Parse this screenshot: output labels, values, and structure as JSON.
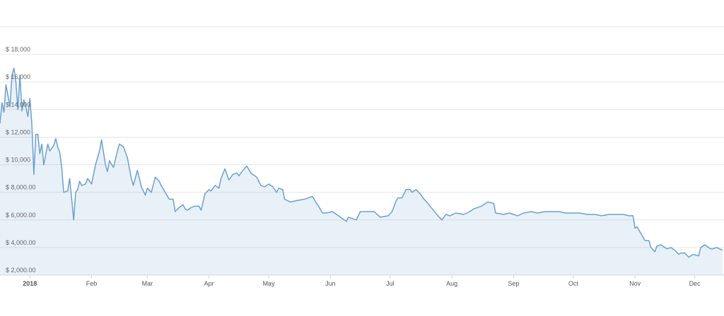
{
  "chart_data": {
    "type": "area",
    "x": [
      -15,
      -14,
      -13,
      -12,
      -11,
      -10,
      -9,
      -8,
      -7,
      -6,
      -5,
      -4,
      -3,
      -2,
      -1,
      0,
      1,
      2,
      3,
      4,
      5,
      6,
      7,
      9,
      10,
      12,
      13,
      14,
      15,
      16,
      17,
      19,
      20,
      21,
      22,
      23,
      24,
      25,
      26,
      28,
      29,
      31,
      33,
      35,
      36,
      38,
      39,
      40,
      42,
      44,
      45,
      47,
      49,
      51,
      52,
      54,
      56,
      58,
      59,
      61,
      63,
      65,
      66,
      68,
      70,
      72,
      73,
      75,
      77,
      78,
      79,
      81,
      83,
      85,
      86,
      88,
      90,
      91,
      93,
      95,
      96,
      98,
      100,
      102,
      104,
      105,
      107,
      109,
      111,
      113,
      114,
      116,
      118,
      120,
      122,
      124,
      125,
      127,
      128,
      131,
      134,
      138,
      142,
      144,
      145,
      147,
      149,
      152,
      155,
      159,
      160,
      164,
      166,
      169,
      173,
      176,
      180,
      182,
      184,
      185,
      187,
      189,
      191,
      192,
      194,
      196,
      198,
      200,
      201,
      205,
      207,
      209,
      211,
      214,
      218,
      221,
      223,
      227,
      230,
      233,
      234,
      238,
      241,
      245,
      248,
      252,
      255,
      259,
      262,
      266,
      269,
      273,
      276,
      280,
      284,
      287,
      291,
      294,
      298,
      301,
      303,
      304,
      305,
      307,
      309,
      311,
      312,
      314,
      315,
      317,
      319,
      320,
      322,
      324,
      326,
      327,
      329,
      331,
      333,
      336,
      337,
      339,
      342,
      343,
      345,
      348
    ],
    "series": [
      {
        "color": "#6b9fd2",
        "values": [
          13000,
          14500,
          13800,
          15800,
          15000,
          14200,
          16500,
          17000,
          16000,
          14000,
          16500,
          13900,
          14700,
          14200,
          13500,
          14800,
          13000,
          9300,
          12200,
          12200,
          10800,
          11500,
          10000,
          11500,
          11000,
          11400,
          11900,
          11300,
          10900,
          9800,
          8000,
          8100,
          9000,
          7500,
          6000,
          8000,
          8200,
          8800,
          8500,
          8600,
          9000,
          8600,
          10000,
          11000,
          11800,
          10000,
          9500,
          10300,
          9800,
          11000,
          11500,
          11300,
          10500,
          9000,
          8500,
          9600,
          8400,
          7800,
          8300,
          8000,
          9100,
          8800,
          8500,
          8000,
          7500,
          7500,
          6600,
          6900,
          7100,
          6800,
          6700,
          6900,
          7000,
          7000,
          6700,
          7900,
          8200,
          8100,
          8500,
          8300,
          9000,
          9700,
          8900,
          9300,
          9400,
          9200,
          9600,
          9900,
          9400,
          9200,
          9100,
          8500,
          8400,
          8600,
          8400,
          8000,
          8300,
          8200,
          7500,
          7300,
          7400,
          7500,
          7700,
          7200,
          7000,
          6500,
          6500,
          6600,
          6300,
          5900,
          6200,
          6000,
          6600,
          6600,
          6600,
          6200,
          6300,
          6600,
          7400,
          7600,
          7600,
          8200,
          8200,
          8000,
          8200,
          7900,
          7500,
          7200,
          7000,
          6300,
          6000,
          6400,
          6300,
          6500,
          6400,
          6600,
          6800,
          7000,
          7300,
          7200,
          6500,
          6400,
          6500,
          6300,
          6500,
          6600,
          6500,
          6600,
          6600,
          6600,
          6500,
          6500,
          6500,
          6400,
          6400,
          6300,
          6400,
          6400,
          6400,
          6300,
          6300,
          5400,
          5500,
          5000,
          4500,
          4500,
          4000,
          3700,
          4100,
          4200,
          4000,
          3900,
          4000,
          3800,
          3500,
          3600,
          3600,
          3300,
          3500,
          3400,
          4000,
          4200,
          3900,
          3900,
          4000,
          3800
        ]
      }
    ],
    "xlim": [
      -15,
      348
    ],
    "xticks": [
      {
        "value": 0,
        "label": "2018"
      },
      {
        "value": 31,
        "label": "Feb"
      },
      {
        "value": 59,
        "label": "Mar"
      },
      {
        "value": 90,
        "label": "Apr"
      },
      {
        "value": 120,
        "label": "May"
      },
      {
        "value": 151,
        "label": "Jun"
      },
      {
        "value": 181,
        "label": "Jul"
      },
      {
        "value": 212,
        "label": "Aug"
      },
      {
        "value": 243,
        "label": "Sep"
      },
      {
        "value": 273,
        "label": "Oct"
      },
      {
        "value": 304,
        "label": "Nov"
      },
      {
        "value": 334,
        "label": "Dec"
      }
    ],
    "ylim": [
      2000,
      20000
    ],
    "yticks": [
      {
        "value": 2000,
        "label": "$ 2,000.00"
      },
      {
        "value": 4000,
        "label": "$ 4,000.00"
      },
      {
        "value": 6000,
        "label": "$ 6,000.00"
      },
      {
        "value": 8000,
        "label": "$ 8,000.00"
      },
      {
        "value": 10000,
        "label": "$ 10,000"
      },
      {
        "value": 12000,
        "label": "$ 12,000"
      },
      {
        "value": 14000,
        "label": "$ 14,000"
      },
      {
        "value": 16000,
        "label": "$ 16,000"
      },
      {
        "value": 18000,
        "label": "$ 18,000"
      }
    ],
    "grid": true
  }
}
